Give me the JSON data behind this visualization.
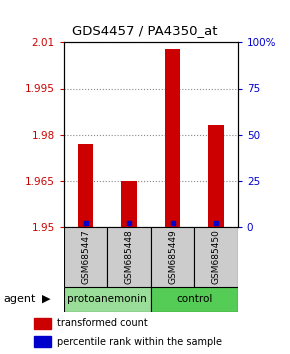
{
  "title": "GDS4457 / PA4350_at",
  "samples": [
    "GSM685447",
    "GSM685448",
    "GSM685449",
    "GSM685450"
  ],
  "transformed_counts": [
    1.977,
    1.965,
    2.008,
    1.983
  ],
  "percentile_ranks": [
    2,
    2,
    2,
    2
  ],
  "ylim_left": [
    1.95,
    2.01
  ],
  "ylim_right": [
    0,
    100
  ],
  "yticks_left": [
    1.95,
    1.965,
    1.98,
    1.995,
    2.01
  ],
  "yticks_right": [
    0,
    25,
    50,
    75,
    100
  ],
  "ytick_labels_left": [
    "1.95",
    "1.965",
    "1.98",
    "1.995",
    "2.01"
  ],
  "ytick_labels_right": [
    "0",
    "25",
    "50",
    "75",
    "100%"
  ],
  "bar_color": "#cc0000",
  "dot_color": "#0000cc",
  "groups": [
    {
      "label": "protoanemonin",
      "samples": [
        0,
        1
      ],
      "color": "#99dd99"
    },
    {
      "label": "control",
      "samples": [
        2,
        3
      ],
      "color": "#55cc55"
    }
  ],
  "group_label_prefix": "agent",
  "legend_bar_label": "transformed count",
  "legend_dot_label": "percentile rank within the sample",
  "background_color": "#ffffff",
  "label_area_color": "#cccccc",
  "grid_color": "#555555",
  "grid_alpha": 0.7
}
